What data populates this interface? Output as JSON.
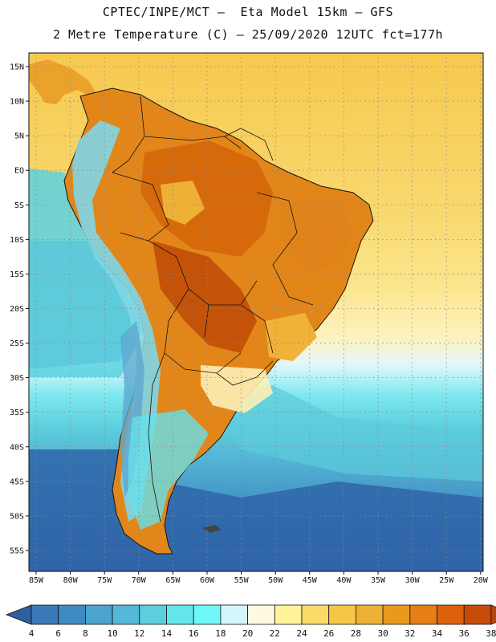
{
  "header": {
    "line1": "CPTEC/INPE/MCT —  Eta Model 15km — GFS",
    "line2": "2 Metre Temperature (C) — 25/09/2020 12UTC fct=177h"
  },
  "map": {
    "lat_labels": [
      "15N",
      "10N",
      "5N",
      "EQ",
      "5S",
      "10S",
      "15S",
      "20S",
      "25S",
      "30S",
      "35S",
      "40S",
      "45S",
      "50S",
      "55S"
    ],
    "lon_labels": [
      "85W",
      "80W",
      "75W",
      "70W",
      "65W",
      "60W",
      "55W",
      "50W",
      "45W",
      "40W",
      "35W",
      "30W",
      "25W",
      "20W"
    ],
    "gridlines": "dotted"
  },
  "legend": {
    "labels": [
      "4",
      "6",
      "8",
      "10",
      "12",
      "14",
      "16",
      "18",
      "20",
      "22",
      "24",
      "26",
      "28",
      "30",
      "32",
      "34",
      "36",
      "38"
    ],
    "colors": [
      "#3a78b8",
      "#3f8ac0",
      "#4aa4cc",
      "#56b8d8",
      "#5ccfdd",
      "#66e6ec",
      "#6ff7f7",
      "#d4f6fb",
      "#fefae0",
      "#fef39a",
      "#fadb6a",
      "#f6c648",
      "#eeb035",
      "#e89a1c",
      "#e57f16",
      "#dd610c",
      "#c74a09"
    ],
    "low_color": "#2e5f9e",
    "high_color": "#b8450c"
  },
  "colors": {
    "ocean_north": "#f6ce5a",
    "ocean_south": "#2d63a8",
    "land_hot": "#d86a0c",
    "grid": "#888888"
  }
}
